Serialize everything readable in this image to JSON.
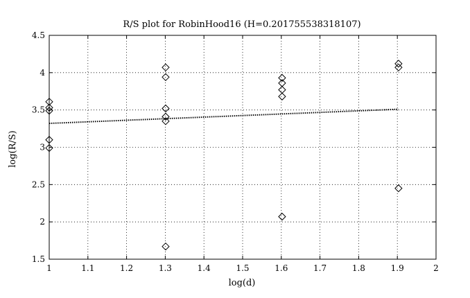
{
  "chart_data": {
    "type": "scatter",
    "title": "R/S plot for RobinHood16 (H=0.201755538318107)",
    "xlabel": "log(d)",
    "ylabel": "log(R/S)",
    "xlim": [
      1,
      2
    ],
    "ylim": [
      1.5,
      4.5
    ],
    "xticks": [
      1,
      1.1,
      1.2,
      1.3,
      1.4,
      1.5,
      1.6,
      1.7,
      1.8,
      1.9,
      2
    ],
    "xtick_labels": [
      "1",
      "1.1",
      "1.2",
      "1.3",
      "1.4",
      "1.5",
      "1.6",
      "1.7",
      "1.8",
      "1.9",
      "2"
    ],
    "yticks": [
      1.5,
      2,
      2.5,
      3,
      3.5,
      4,
      4.5
    ],
    "ytick_labels": [
      "1.5",
      "2",
      "2.5",
      "3",
      "3.5",
      "4",
      "4.5"
    ],
    "grid": true,
    "marker": "diamond",
    "points": [
      {
        "x": 1.0,
        "y": 3.61
      },
      {
        "x": 1.0,
        "y": 3.53
      },
      {
        "x": 1.0,
        "y": 3.49
      },
      {
        "x": 1.0,
        "y": 3.1
      },
      {
        "x": 1.0,
        "y": 2.99
      },
      {
        "x": 1.301,
        "y": 4.07
      },
      {
        "x": 1.301,
        "y": 3.94
      },
      {
        "x": 1.301,
        "y": 3.52
      },
      {
        "x": 1.301,
        "y": 3.41
      },
      {
        "x": 1.301,
        "y": 3.35
      },
      {
        "x": 1.301,
        "y": 1.67
      },
      {
        "x": 1.602,
        "y": 3.93
      },
      {
        "x": 1.602,
        "y": 3.86
      },
      {
        "x": 1.602,
        "y": 3.77
      },
      {
        "x": 1.602,
        "y": 3.68
      },
      {
        "x": 1.602,
        "y": 2.07
      },
      {
        "x": 1.903,
        "y": 4.12
      },
      {
        "x": 1.903,
        "y": 4.07
      },
      {
        "x": 1.903,
        "y": 2.45
      }
    ],
    "fit_line": {
      "x": [
        1.0,
        1.903
      ],
      "y": [
        3.32,
        3.51
      ],
      "style": "dotted"
    }
  }
}
